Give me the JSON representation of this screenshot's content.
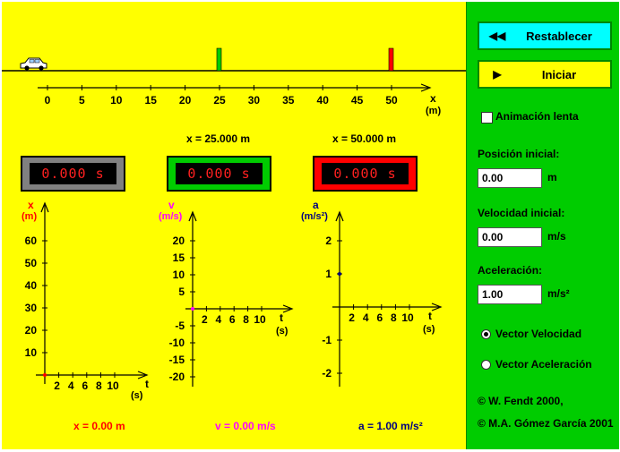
{
  "track": {
    "ticks": [
      "0",
      "5",
      "10",
      "15",
      "20",
      "25",
      "30",
      "35",
      "40",
      "45",
      "50"
    ],
    "axis_label": "x",
    "axis_unit": "(m)",
    "markers": [
      {
        "label": "x = 25.000 m",
        "color": "#00cc00"
      },
      {
        "label": "x = 50.000 m",
        "color": "#ff0000"
      }
    ]
  },
  "timers": [
    {
      "value": "0.000  s",
      "frame_color": "#808080"
    },
    {
      "value": "0.000  s",
      "frame_color": "#00cc00"
    },
    {
      "value": "0.000  s",
      "frame_color": "#ff0000"
    }
  ],
  "graphs": {
    "position": {
      "axis_label": "x",
      "axis_unit": "(m)",
      "color": "#ff0000",
      "y_ticks": [
        "10",
        "20",
        "30",
        "40",
        "50",
        "60"
      ],
      "t_ticks": [
        "2",
        "4",
        "6",
        "8",
        "10"
      ],
      "t_label": "t",
      "t_unit": "(s)",
      "readout": "x = 0.00 m"
    },
    "velocity": {
      "axis_label": "v",
      "axis_unit": "(m/s)",
      "color": "#ff00ff",
      "y_ticks": [
        "-20",
        "-15",
        "-10",
        "-5",
        "5",
        "10",
        "15",
        "20"
      ],
      "t_ticks": [
        "2",
        "4",
        "6",
        "8",
        "10"
      ],
      "t_label": "t",
      "t_unit": "(s)",
      "readout": "v = 0.00 m/s"
    },
    "acceleration": {
      "axis_label": "a",
      "axis_unit": "(m/s²)",
      "color": "#000080",
      "y_ticks": [
        "-2",
        "-1",
        "1",
        "2"
      ],
      "t_ticks": [
        "2",
        "4",
        "6",
        "8",
        "10"
      ],
      "t_label": "t",
      "t_unit": "(s)",
      "readout": "a = 1.00 m/s²"
    }
  },
  "panel": {
    "reset_label": "Restablecer",
    "start_label": "Iniciar",
    "slow_motion_label": "Animación lenta",
    "slow_motion_checked": false,
    "initial_position_label": "Posición inicial:",
    "initial_position_value": "0.00",
    "initial_position_unit": "m",
    "initial_velocity_label": "Velocidad inicial:",
    "initial_velocity_value": "0.00",
    "initial_velocity_unit": "m/s",
    "acceleration_label": "Aceleración:",
    "acceleration_value": "1.00",
    "acceleration_unit": "m/s²",
    "radio_velocity_label": "Vector Velocidad",
    "radio_acceleration_label": "Vector Aceleración",
    "selected_vector": "velocity",
    "copyright_1": "© W. Fendt 2000,",
    "copyright_2": "© M.A. Gómez García 2001"
  }
}
